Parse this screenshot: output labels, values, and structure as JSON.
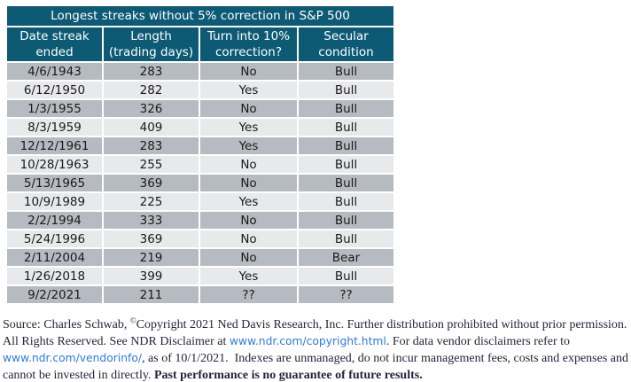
{
  "colors": {
    "header_teal": "#0d5a74",
    "row_dark": "#b6bbc2",
    "row_light": "#e8e9eb",
    "link_blue": "#2d7be0",
    "footer_text": "#23263a"
  },
  "table": {
    "title": "Longest streaks without 5% correction in S&P 500",
    "columns": [
      {
        "id": "date-streak-ended",
        "line1": "Date streak",
        "line2": "ended"
      },
      {
        "id": "length-trading-days",
        "line1": "Length",
        "line2": "(trading days)"
      },
      {
        "id": "turn-into-10pct-correction",
        "line1": "Turn into 10%",
        "line2": "correction?"
      },
      {
        "id": "secular-condition",
        "line1": "Secular",
        "line2": "condition"
      }
    ],
    "rows": [
      [
        "4/6/1943",
        "283",
        "No",
        "Bull"
      ],
      [
        "6/12/1950",
        "282",
        "Yes",
        "Bull"
      ],
      [
        "1/3/1955",
        "326",
        "No",
        "Bull"
      ],
      [
        "8/3/1959",
        "409",
        "Yes",
        "Bull"
      ],
      [
        "12/12/1961",
        "283",
        "Yes",
        "Bull"
      ],
      [
        "10/28/1963",
        "255",
        "No",
        "Bull"
      ],
      [
        "5/13/1965",
        "369",
        "No",
        "Bull"
      ],
      [
        "10/9/1989",
        "225",
        "Yes",
        "Bull"
      ],
      [
        "2/2/1994",
        "333",
        "No",
        "Bull"
      ],
      [
        "5/24/1996",
        "369",
        "No",
        "Bull"
      ],
      [
        "2/11/2004",
        "219",
        "No",
        "Bear"
      ],
      [
        "1/26/2018",
        "399",
        "Yes",
        "Bull"
      ],
      [
        "9/2/2021",
        "211",
        "??",
        "??"
      ]
    ]
  },
  "footer": {
    "lines": [
      [
        {
          "text": "Source: Charles Schwab, ",
          "style": "normal"
        },
        {
          "text": "©",
          "style": "sup"
        },
        {
          "text": "Copyright 2021 Ned Davis Research, Inc. Further distribution prohibited without prior permission.",
          "style": "normal"
        }
      ],
      [
        {
          "text": "All Rights Reserved. See NDR Disclaimer at ",
          "style": "normal"
        },
        {
          "text": "www.ndr.com/copyright.html",
          "style": "link"
        },
        {
          "text": ". For data vendor disclaimers refer to",
          "style": "normal"
        }
      ],
      [
        {
          "text": "www.ndr.com/vendorinfo/",
          "style": "link"
        },
        {
          "text": ", as of 10/1/2021.  Indexes are unmanaged, do not incur management fees, costs and expenses and",
          "style": "normal"
        }
      ],
      [
        {
          "text": "cannot be invested in directly. ",
          "style": "normal"
        },
        {
          "text": "Past performance is no guarantee of future results.",
          "style": "bold"
        }
      ]
    ]
  }
}
